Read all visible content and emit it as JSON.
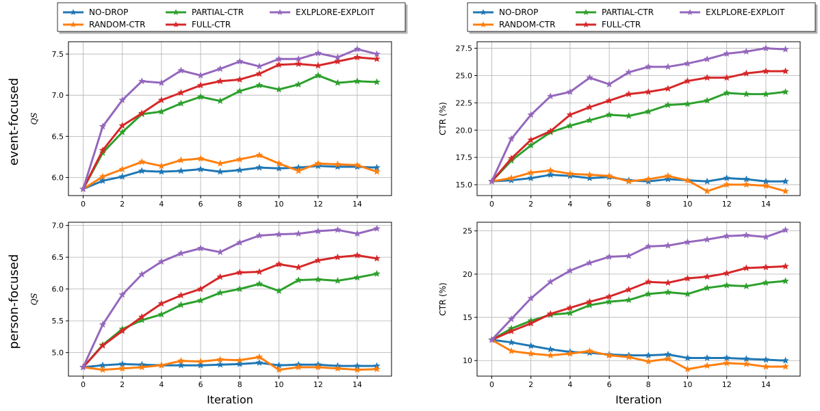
{
  "figure": {
    "row_labels": [
      "event-focused",
      "person-focused"
    ],
    "xlabel": "Iteration"
  },
  "colors": {
    "NO-DROP": "#1f77b4",
    "RANDOM-CTR": "#ff7f0e",
    "PARTIAL-CTR": "#2ca02c",
    "FULL-CTR": "#d62728",
    "EXLPLORE-EXPLOIT": "#9467bd"
  },
  "legend": {
    "placement": "top-center (above each column)",
    "entries": [
      "NO-DROP",
      "RANDOM-CTR",
      "PARTIAL-CTR",
      "FULL-CTR",
      "EXLPLORE-EXPLOIT"
    ]
  },
  "chart_data": [
    {
      "id": "event-qs",
      "type": "line",
      "row": "event-focused",
      "xlabel": "",
      "ylabel": "QS",
      "ylim": [
        5.78,
        7.65
      ],
      "xlim": [
        -0.75,
        15.75
      ],
      "yticks": [
        6.0,
        6.5,
        7.0,
        7.5
      ],
      "ytick_labels": [
        "6.0",
        "6.5",
        "7.0",
        "7.5"
      ],
      "xticks": [
        0,
        2,
        4,
        6,
        8,
        10,
        12,
        14
      ],
      "xtick_labels": [
        "0",
        "2",
        "4",
        "6",
        "8",
        "10",
        "12",
        "14"
      ],
      "grid": true,
      "x": [
        0,
        1,
        2,
        3,
        4,
        5,
        6,
        7,
        8,
        9,
        10,
        11,
        12,
        13,
        14,
        15
      ],
      "series": [
        {
          "name": "NO-DROP",
          "values": [
            5.86,
            5.96,
            6.01,
            6.08,
            6.07,
            6.08,
            6.1,
            6.07,
            6.09,
            6.12,
            6.11,
            6.12,
            6.14,
            6.13,
            6.13,
            6.12
          ]
        },
        {
          "name": "RANDOM-CTR",
          "values": [
            5.86,
            6.01,
            6.1,
            6.19,
            6.14,
            6.21,
            6.23,
            6.17,
            6.22,
            6.27,
            6.17,
            6.08,
            6.17,
            6.16,
            6.15,
            6.07
          ]
        },
        {
          "name": "PARTIAL-CTR",
          "values": [
            5.86,
            6.3,
            6.55,
            6.77,
            6.8,
            6.9,
            6.98,
            6.93,
            7.05,
            7.12,
            7.07,
            7.13,
            7.24,
            7.15,
            7.17,
            7.16
          ]
        },
        {
          "name": "FULL-CTR",
          "values": [
            5.86,
            6.33,
            6.63,
            6.78,
            6.94,
            7.03,
            7.12,
            7.17,
            7.19,
            7.26,
            7.37,
            7.38,
            7.36,
            7.41,
            7.46,
            7.44
          ]
        },
        {
          "name": "EXLPLORE-EXPLOIT",
          "values": [
            5.86,
            6.62,
            6.94,
            7.17,
            7.15,
            7.3,
            7.24,
            7.32,
            7.41,
            7.35,
            7.44,
            7.44,
            7.51,
            7.46,
            7.56,
            7.5
          ]
        }
      ]
    },
    {
      "id": "event-ctr",
      "type": "line",
      "row": "event-focused",
      "xlabel": "",
      "ylabel": "CTR (%)",
      "ylim": [
        14.0,
        28.1
      ],
      "xlim": [
        -0.75,
        15.75
      ],
      "yticks": [
        15.0,
        17.5,
        20.0,
        22.5,
        25.0,
        27.5
      ],
      "ytick_labels": [
        "15.0",
        "17.5",
        "20.0",
        "22.5",
        "25.0",
        "27.5"
      ],
      "xticks": [
        0,
        2,
        4,
        6,
        8,
        10,
        12,
        14
      ],
      "xtick_labels": [
        "0",
        "2",
        "4",
        "6",
        "8",
        "10",
        "12",
        "14"
      ],
      "grid": true,
      "x": [
        0,
        1,
        2,
        3,
        4,
        5,
        6,
        7,
        8,
        9,
        10,
        11,
        12,
        13,
        14,
        15
      ],
      "series": [
        {
          "name": "NO-DROP",
          "values": [
            15.3,
            15.4,
            15.6,
            15.9,
            15.8,
            15.6,
            15.7,
            15.4,
            15.3,
            15.5,
            15.4,
            15.3,
            15.6,
            15.5,
            15.3,
            15.3
          ]
        },
        {
          "name": "RANDOM-CTR",
          "values": [
            15.3,
            15.6,
            16.1,
            16.3,
            16.0,
            15.9,
            15.8,
            15.3,
            15.5,
            15.8,
            15.4,
            14.4,
            15.0,
            15.0,
            14.9,
            14.4
          ]
        },
        {
          "name": "PARTIAL-CTR",
          "values": [
            15.3,
            17.2,
            18.6,
            19.8,
            20.4,
            20.9,
            21.4,
            21.3,
            21.7,
            22.3,
            22.4,
            22.7,
            23.4,
            23.3,
            23.3,
            23.5
          ]
        },
        {
          "name": "FULL-CTR",
          "values": [
            15.3,
            17.4,
            19.1,
            19.9,
            21.4,
            22.1,
            22.7,
            23.3,
            23.5,
            23.8,
            24.5,
            24.8,
            24.8,
            25.2,
            25.4,
            25.4
          ]
        },
        {
          "name": "EXLPLORE-EXPLOIT",
          "values": [
            15.3,
            19.2,
            21.4,
            23.1,
            23.5,
            24.8,
            24.2,
            25.3,
            25.8,
            25.8,
            26.1,
            26.5,
            27.0,
            27.2,
            27.5,
            27.4
          ]
        }
      ]
    },
    {
      "id": "person-qs",
      "type": "line",
      "row": "person-focused",
      "xlabel": "Iteration",
      "ylabel": "QS",
      "ylim": [
        4.63,
        7.05
      ],
      "xlim": [
        -0.75,
        15.75
      ],
      "yticks": [
        5.0,
        5.5,
        6.0,
        6.5,
        7.0
      ],
      "ytick_labels": [
        "5.0",
        "5.5",
        "6.0",
        "6.5",
        "7.0"
      ],
      "xticks": [
        0,
        2,
        4,
        6,
        8,
        10,
        12,
        14
      ],
      "xtick_labels": [
        "0",
        "2",
        "4",
        "6",
        "8",
        "10",
        "12",
        "14"
      ],
      "grid": true,
      "x": [
        0,
        1,
        2,
        3,
        4,
        5,
        6,
        7,
        8,
        9,
        10,
        11,
        12,
        13,
        14,
        15
      ],
      "series": [
        {
          "name": "NO-DROP",
          "values": [
            4.77,
            4.8,
            4.82,
            4.81,
            4.8,
            4.8,
            4.8,
            4.81,
            4.82,
            4.84,
            4.8,
            4.81,
            4.81,
            4.79,
            4.79,
            4.79
          ]
        },
        {
          "name": "RANDOM-CTR",
          "values": [
            4.77,
            4.73,
            4.75,
            4.77,
            4.8,
            4.87,
            4.86,
            4.89,
            4.88,
            4.93,
            4.73,
            4.77,
            4.77,
            4.75,
            4.73,
            4.74
          ]
        },
        {
          "name": "PARTIAL-CTR",
          "values": [
            4.77,
            5.12,
            5.37,
            5.51,
            5.6,
            5.75,
            5.82,
            5.94,
            6.0,
            6.08,
            5.97,
            6.14,
            6.15,
            6.13,
            6.18,
            6.24
          ]
        },
        {
          "name": "FULL-CTR",
          "values": [
            4.77,
            5.11,
            5.34,
            5.56,
            5.77,
            5.9,
            6.0,
            6.19,
            6.26,
            6.27,
            6.39,
            6.34,
            6.45,
            6.5,
            6.53,
            6.48
          ]
        },
        {
          "name": "EXLPLORE-EXPLOIT",
          "values": [
            4.77,
            5.44,
            5.91,
            6.23,
            6.43,
            6.56,
            6.64,
            6.58,
            6.73,
            6.84,
            6.86,
            6.87,
            6.91,
            6.93,
            6.87,
            6.95
          ]
        }
      ]
    },
    {
      "id": "person-ctr",
      "type": "line",
      "row": "person-focused",
      "xlabel": "Iteration",
      "ylabel": "CTR (%)",
      "ylim": [
        8.2,
        26.0
      ],
      "xlim": [
        -0.75,
        15.75
      ],
      "yticks": [
        10,
        15,
        20,
        25
      ],
      "ytick_labels": [
        "10",
        "15",
        "20",
        "25"
      ],
      "xticks": [
        0,
        2,
        4,
        6,
        8,
        10,
        12,
        14
      ],
      "xtick_labels": [
        "0",
        "2",
        "4",
        "6",
        "8",
        "10",
        "12",
        "14"
      ],
      "grid": true,
      "x": [
        0,
        1,
        2,
        3,
        4,
        5,
        6,
        7,
        8,
        9,
        10,
        11,
        12,
        13,
        14,
        15
      ],
      "series": [
        {
          "name": "NO-DROP",
          "values": [
            12.4,
            12.1,
            11.7,
            11.3,
            11.0,
            10.9,
            10.7,
            10.6,
            10.6,
            10.7,
            10.3,
            10.3,
            10.3,
            10.2,
            10.1,
            10.0
          ]
        },
        {
          "name": "RANDOM-CTR",
          "values": [
            12.4,
            11.1,
            10.8,
            10.6,
            10.8,
            11.1,
            10.6,
            10.4,
            9.9,
            10.2,
            9.0,
            9.4,
            9.7,
            9.6,
            9.3,
            9.3
          ]
        },
        {
          "name": "PARTIAL-CTR",
          "values": [
            12.4,
            13.7,
            14.6,
            15.3,
            15.5,
            16.4,
            16.8,
            17.0,
            17.7,
            17.9,
            17.7,
            18.4,
            18.7,
            18.6,
            19.0,
            19.2
          ]
        },
        {
          "name": "FULL-CTR",
          "values": [
            12.4,
            13.4,
            14.3,
            15.4,
            16.1,
            16.8,
            17.4,
            18.2,
            19.1,
            19.0,
            19.5,
            19.7,
            20.1,
            20.7,
            20.8,
            20.9
          ]
        },
        {
          "name": "EXLPLORE-EXPLOIT",
          "values": [
            12.4,
            14.8,
            17.2,
            19.1,
            20.4,
            21.3,
            22.0,
            22.1,
            23.2,
            23.3,
            23.7,
            24.0,
            24.4,
            24.5,
            24.3,
            25.1
          ]
        }
      ]
    }
  ]
}
